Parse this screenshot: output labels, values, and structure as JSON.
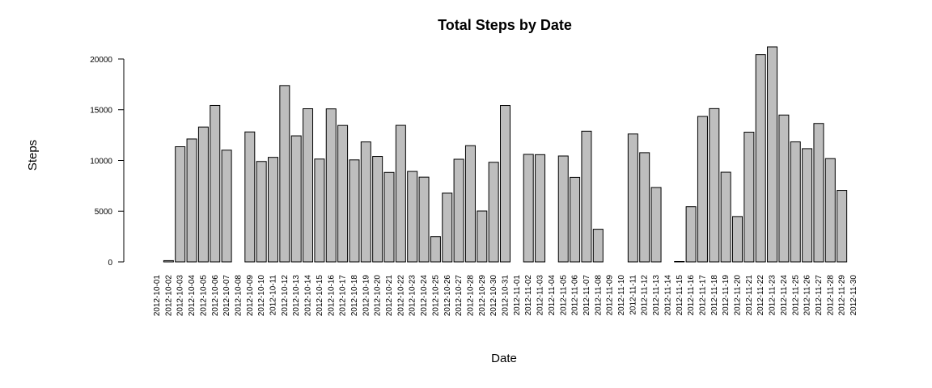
{
  "chart_data": {
    "type": "bar",
    "title": "Total Steps by Date",
    "xlabel": "Date",
    "ylabel": "Steps",
    "ylim": [
      0,
      21194
    ],
    "yticks": [
      0,
      5000,
      10000,
      15000,
      20000
    ],
    "bar_color": "#bebebe",
    "grid": false,
    "categories": [
      "2012-10-01",
      "2012-10-02",
      "2012-10-03",
      "2012-10-04",
      "2012-10-05",
      "2012-10-06",
      "2012-10-07",
      "2012-10-08",
      "2012-10-09",
      "2012-10-10",
      "2012-10-11",
      "2012-10-12",
      "2012-10-13",
      "2012-10-14",
      "2012-10-15",
      "2012-10-16",
      "2012-10-17",
      "2012-10-18",
      "2012-10-19",
      "2012-10-20",
      "2012-10-21",
      "2012-10-22",
      "2012-10-23",
      "2012-10-24",
      "2012-10-25",
      "2012-10-26",
      "2012-10-27",
      "2012-10-28",
      "2012-10-29",
      "2012-10-30",
      "2012-10-31",
      "2012-11-01",
      "2012-11-02",
      "2012-11-03",
      "2012-11-04",
      "2012-11-05",
      "2012-11-06",
      "2012-11-07",
      "2012-11-08",
      "2012-11-09",
      "2012-11-10",
      "2012-11-11",
      "2012-11-12",
      "2012-11-13",
      "2012-11-14",
      "2012-11-15",
      "2012-11-16",
      "2012-11-17",
      "2012-11-18",
      "2012-11-19",
      "2012-11-20",
      "2012-11-21",
      "2012-11-22",
      "2012-11-23",
      "2012-11-24",
      "2012-11-25",
      "2012-11-26",
      "2012-11-27",
      "2012-11-28",
      "2012-11-29",
      "2012-11-30"
    ],
    "values": [
      0,
      126,
      11352,
      12116,
      13294,
      15420,
      11015,
      0,
      12811,
      9900,
      10304,
      17382,
      12426,
      15098,
      10139,
      15084,
      13452,
      10056,
      11829,
      10395,
      8821,
      13460,
      8918,
      8355,
      2492,
      6778,
      10119,
      11458,
      5018,
      9819,
      15414,
      0,
      10600,
      10571,
      0,
      10439,
      8334,
      12883,
      3219,
      0,
      0,
      12608,
      10765,
      7336,
      0,
      41,
      5441,
      14339,
      15110,
      8841,
      4472,
      12787,
      20427,
      21194,
      14478,
      11834,
      11162,
      13646,
      10183,
      7047,
      0
    ]
  }
}
